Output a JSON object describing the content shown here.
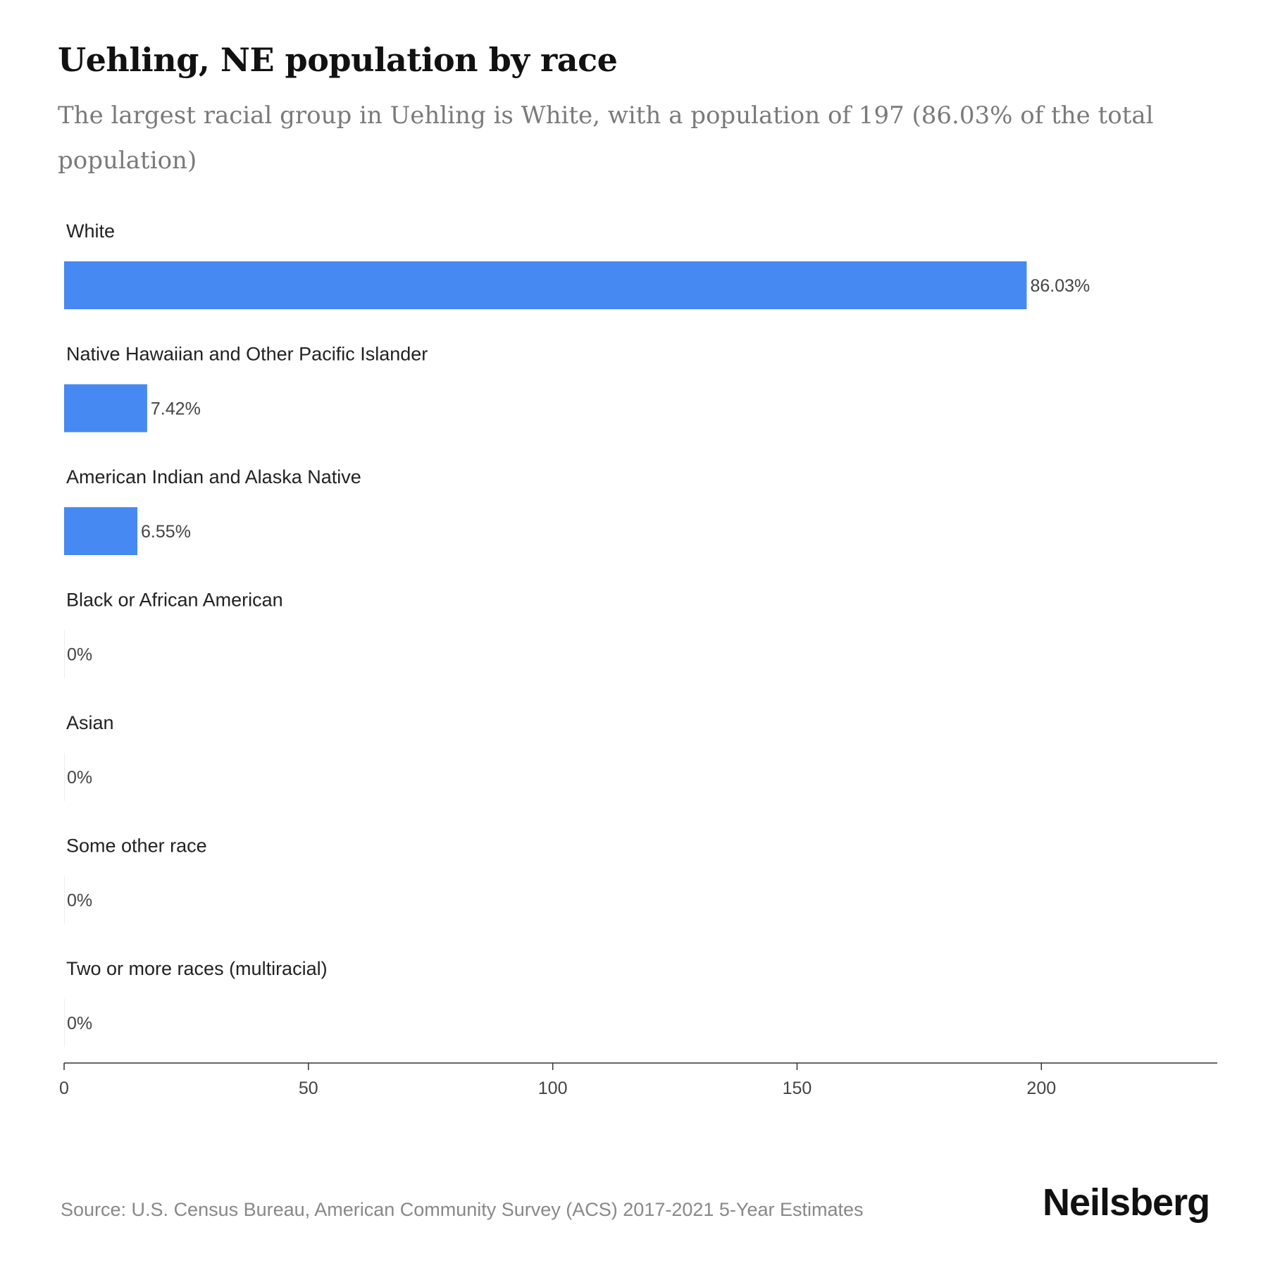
{
  "header": {
    "title": "Uehling, NE population by race",
    "subtitle": "The largest racial group in Uehling is White, with a population of 197 (86.03% of the total population)"
  },
  "footer": {
    "source": "Source: U.S. Census Bureau, American Community Survey (ACS) 2017-2021 5-Year Estimates",
    "brand": "Neilsberg"
  },
  "colors": {
    "bar": "#4689f2",
    "axis": "#333333"
  },
  "chart_data": {
    "type": "bar",
    "orientation": "horizontal",
    "categories": [
      "White",
      "Native Hawaiian and Other Pacific Islander",
      "American Indian and Alaska Native",
      "Black or African American",
      "Asian",
      "Some other race",
      "Two or more races (multiracial)"
    ],
    "values": [
      197,
      17,
      15,
      0,
      0,
      0,
      0
    ],
    "value_labels": [
      "86.03%",
      "7.42%",
      "6.55%",
      "0%",
      "0%",
      "0%",
      "0%"
    ],
    "xlim": [
      0,
      236
    ],
    "xticks": [
      0,
      50,
      100,
      150,
      200
    ],
    "xtick_labels": [
      "0",
      "50",
      "100",
      "150",
      "200"
    ],
    "grid": false,
    "legend": "none"
  }
}
